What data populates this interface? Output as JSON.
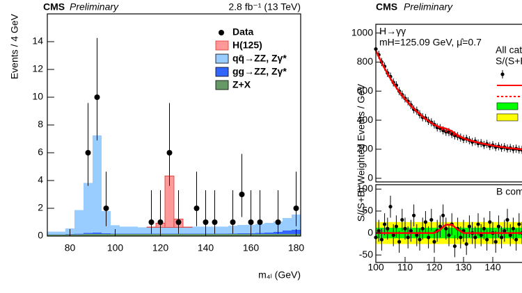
{
  "chart_data": [
    {
      "type": "histogram",
      "title": "CMS",
      "subtitle": "Preliminary",
      "lumi": "2.8 fb⁻¹ (13 TeV)",
      "x_label": "m₄ₗ (GeV)",
      "y_label": "Events / 4 GeV",
      "xlim": [
        70,
        182
      ],
      "ylim": [
        0,
        16
      ],
      "xticks": [
        80,
        100,
        120,
        140,
        160,
        180
      ],
      "yticks": [
        0,
        2,
        4,
        6,
        8,
        10,
        12,
        14
      ],
      "bins": [
        70,
        74,
        78,
        82,
        86,
        90,
        94,
        98,
        102,
        106,
        110,
        114,
        118,
        122,
        126,
        130,
        134,
        138,
        142,
        146,
        150,
        154,
        158,
        162,
        166,
        170,
        174,
        178,
        182
      ],
      "series": [
        {
          "name": "Z+X",
          "color": "#669966",
          "values": [
            0.1,
            0.1,
            0.12,
            0.12,
            0.15,
            0.15,
            0.15,
            0.15,
            0.15,
            0.15,
            0.15,
            0.15,
            0.15,
            0.15,
            0.15,
            0.15,
            0.15,
            0.15,
            0.15,
            0.15,
            0.15,
            0.15,
            0.15,
            0.15,
            0.15,
            0.15,
            0.15,
            0.15
          ]
        },
        {
          "name": "gg→ZZ, Zγ*",
          "color": "#3366ff",
          "values": [
            0.02,
            0.02,
            0.03,
            0.05,
            0.08,
            0.1,
            0.05,
            0.03,
            0.03,
            0.03,
            0.03,
            0.03,
            0.03,
            0.03,
            0.03,
            0.03,
            0.03,
            0.03,
            0.03,
            0.03,
            0.04,
            0.05,
            0.06,
            0.08,
            0.1,
            0.15,
            0.25,
            0.3
          ]
        },
        {
          "name": "qq̄→ZZ, Zγ*",
          "color": "#99ccff",
          "values": [
            0.2,
            0.2,
            0.4,
            1.7,
            3.6,
            7.0,
            1.6,
            0.6,
            0.5,
            0.5,
            0.45,
            0.45,
            0.45,
            0.45,
            0.45,
            0.45,
            0.5,
            0.5,
            0.5,
            0.5,
            0.55,
            0.6,
            0.6,
            0.65,
            0.7,
            0.75,
            0.9,
            1.1
          ]
        },
        {
          "name": "H(125)",
          "color": "#ff9999",
          "values": [
            0,
            0,
            0,
            0,
            0,
            0,
            0,
            0,
            0,
            0,
            0,
            0.02,
            0.3,
            3.7,
            0.6,
            0.02,
            0,
            0,
            0,
            0,
            0,
            0,
            0,
            0,
            0,
            0,
            0,
            0
          ]
        }
      ],
      "data": {
        "name": "Data",
        "x": [
          88,
          92,
          96,
          116,
          120,
          124,
          128,
          136,
          140,
          144,
          152,
          156,
          160,
          164,
          172,
          180
        ],
        "values": [
          6,
          10,
          2,
          1,
          1,
          6,
          1,
          2,
          1,
          1,
          1,
          3,
          1,
          1,
          1,
          2
        ],
        "err_low": [
          2.38,
          3.11,
          1.29,
          0.83,
          0.83,
          2.38,
          0.83,
          1.29,
          0.83,
          0.83,
          0.83,
          1.63,
          0.83,
          0.83,
          0.83,
          1.29
        ],
        "err_high": [
          3.58,
          4.26,
          2.64,
          2.3,
          2.3,
          3.58,
          2.3,
          2.64,
          2.3,
          2.3,
          2.3,
          2.92,
          2.3,
          2.3,
          2.3,
          2.64
        ]
      }
    },
    {
      "type": "scatter",
      "title": "CMS",
      "subtitle": "Preliminary",
      "annotations": [
        "H→γγ",
        "mH=125.09 GeV, μ̂=0.7",
        "All cat",
        "S/(S+B"
      ],
      "y_label": "S/(S+B) Weighted Events / GeV",
      "xlim": [
        100,
        150
      ],
      "ylim": [
        -25,
        1060
      ],
      "yticks": [
        0,
        200,
        400,
        600,
        800,
        1000
      ],
      "x": [
        100,
        101,
        102,
        103,
        104,
        105,
        106,
        107,
        108,
        109,
        110,
        111,
        112,
        113,
        114,
        115,
        116,
        117,
        118,
        119,
        120,
        121,
        122,
        123,
        124,
        125,
        126,
        127,
        128,
        129,
        130,
        131,
        132,
        133,
        134,
        135,
        136,
        137,
        138,
        139,
        140,
        141,
        142,
        143,
        144,
        145,
        146,
        147,
        148,
        149,
        150
      ],
      "values": [
        890,
        850,
        800,
        770,
        725,
        700,
        660,
        640,
        600,
        575,
        550,
        530,
        505,
        475,
        465,
        440,
        420,
        415,
        395,
        385,
        370,
        350,
        345,
        330,
        320,
        318,
        305,
        295,
        290,
        280,
        270,
        272,
        262,
        250,
        255,
        240,
        242,
        230,
        236,
        222,
        228,
        215,
        220,
        210,
        214,
        205,
        208,
        200,
        204,
        198,
        196
      ],
      "yerr": 28,
      "fit_x": [
        100,
        102,
        104,
        106,
        108,
        110,
        112,
        114,
        116,
        118,
        120,
        122,
        124,
        126,
        128,
        130,
        132,
        134,
        136,
        138,
        140,
        142,
        144,
        146,
        148,
        150
      ],
      "fit_sb": [
        880,
        795,
        720,
        654,
        596,
        545,
        500,
        460,
        425,
        395,
        368,
        352,
        342,
        324,
        297,
        275,
        262,
        251,
        241,
        233,
        225,
        218,
        213,
        207,
        203,
        199
      ],
      "fit_b": [
        880,
        795,
        720,
        654,
        596,
        545,
        500,
        460,
        425,
        395,
        368,
        344,
        323,
        305,
        289,
        275,
        262,
        251,
        241,
        233,
        225,
        218,
        213,
        207,
        203,
        199
      ],
      "color": "#000000",
      "fit_color": "#ff0000",
      "band1_color": "#00ff00",
      "band2_color": "#ffff00"
    },
    {
      "type": "scatter",
      "annotations": [
        "B com"
      ],
      "xlim": [
        100,
        150
      ],
      "ylim": [
        -67,
        110
      ],
      "xticks": [
        100,
        110,
        120,
        130,
        140
      ],
      "yticks": [
        -50,
        0,
        50,
        100
      ],
      "x": [
        100,
        101,
        102,
        103,
        104,
        105,
        106,
        107,
        108,
        109,
        110,
        111,
        112,
        113,
        114,
        115,
        116,
        117,
        118,
        119,
        120,
        121,
        122,
        123,
        124,
        125,
        126,
        127,
        128,
        129,
        130,
        131,
        132,
        133,
        134,
        135,
        136,
        137,
        138,
        139,
        140,
        141,
        142,
        143,
        144,
        145,
        146,
        147,
        148,
        149,
        150
      ],
      "values": [
        -10,
        5,
        -15,
        20,
        10,
        60,
        -5,
        15,
        -20,
        30,
        10,
        -10,
        5,
        40,
        -5,
        -15,
        10,
        25,
        -10,
        30,
        -20,
        5,
        15,
        40,
        10,
        -5,
        20,
        -30,
        10,
        -10,
        5,
        -25,
        15,
        0,
        -10,
        20,
        -5,
        10,
        -15,
        25,
        0,
        -20,
        15,
        -10,
        5,
        30,
        -5,
        10,
        -15,
        20,
        0
      ],
      "yerr": 25,
      "fit_x": [
        100,
        102,
        104,
        106,
        108,
        110,
        112,
        114,
        116,
        118,
        120,
        122,
        124,
        126,
        128,
        130,
        132,
        134,
        136,
        138,
        140,
        142,
        144,
        146,
        148,
        150
      ],
      "fit_s": [
        0,
        0,
        0,
        0,
        0,
        0,
        0,
        0,
        0,
        0,
        0,
        8,
        19,
        19,
        8,
        0,
        0,
        0,
        0,
        0,
        0,
        0,
        0,
        0,
        0,
        0
      ],
      "band_1sigma": 12,
      "band_2sigma": 25,
      "color": "#000000",
      "fit_color": "#ff0000",
      "band1_color": "#00ff00",
      "band2_color": "#ffff00"
    }
  ]
}
